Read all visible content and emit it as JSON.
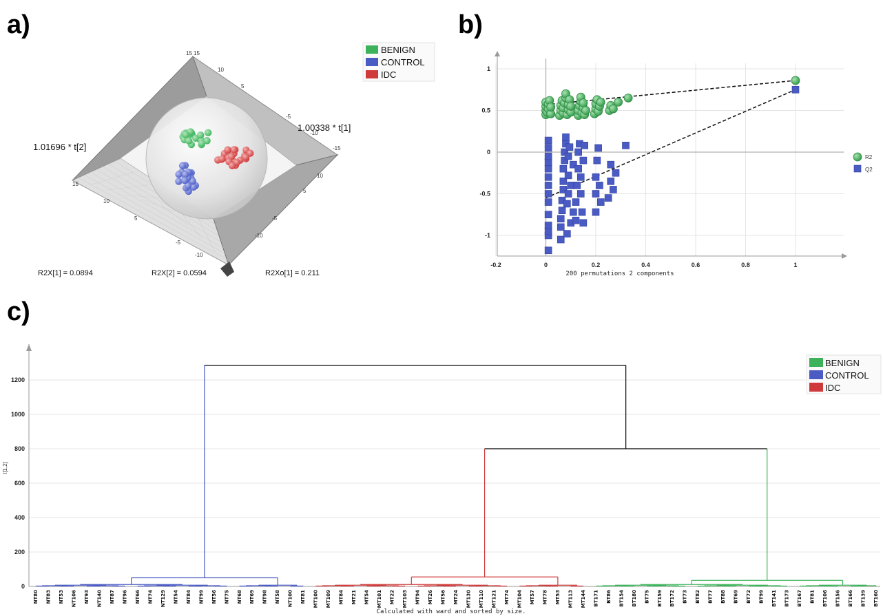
{
  "panels": {
    "a": "a)",
    "b": "b)",
    "c": "c)"
  },
  "colors": {
    "benign": "#3cb35a",
    "control": "#4a5bc4",
    "idc": "#cf3a3a",
    "black": "#000000"
  },
  "chart_data": [
    {
      "type": "scatter",
      "panel": "a",
      "subtype": "3d-scores",
      "legend": [
        {
          "name": "BENIGN",
          "color": "#3cb35a"
        },
        {
          "name": "CONTROL",
          "color": "#4a5bc4"
        },
        {
          "name": "IDC",
          "color": "#cf3a3a"
        }
      ],
      "axis_labels": {
        "t1": "1.00338 * t[1]",
        "t2": "1.01696 * t[2]"
      },
      "footer": [
        "R2X[1] = 0.0894",
        "R2X[2] = 0.0594",
        "R2Xo[1] = 0.211"
      ],
      "corner_ticks": [
        "15",
        "15",
        "10",
        "5",
        "-5",
        "-10",
        "-15"
      ]
    },
    {
      "type": "scatter",
      "panel": "b",
      "xlabel": "200 permutations 2 components",
      "xticks": [
        "-0.2",
        "0",
        "0.2",
        "0.4",
        "0.6",
        "0.8",
        "1"
      ],
      "yticks": [
        "1",
        "0.5",
        "0",
        "-0.5",
        "-1"
      ],
      "xlim": [
        -0.2,
        1.15
      ],
      "ylim": [
        -1.25,
        1.1
      ],
      "series": [
        {
          "name": "R2",
          "marker": "circle",
          "color": "#3cb35a",
          "points": [
            [
              0,
              0.45
            ],
            [
              0,
              0.5
            ],
            [
              0,
              0.55
            ],
            [
              0,
              0.6
            ],
            [
              0.005,
              0.48
            ],
            [
              0.01,
              0.52
            ],
            [
              0.01,
              0.58
            ],
            [
              0.015,
              0.62
            ],
            [
              0.02,
              0.46
            ],
            [
              0.02,
              0.54
            ],
            [
              0.055,
              0.44
            ],
            [
              0.06,
              0.5
            ],
            [
              0.06,
              0.56
            ],
            [
              0.065,
              0.62
            ],
            [
              0.07,
              0.47
            ],
            [
              0.07,
              0.53
            ],
            [
              0.075,
              0.59
            ],
            [
              0.08,
              0.65
            ],
            [
              0.08,
              0.7
            ],
            [
              0.085,
              0.45
            ],
            [
              0.09,
              0.51
            ],
            [
              0.09,
              0.57
            ],
            [
              0.095,
              0.63
            ],
            [
              0.1,
              0.48
            ],
            [
              0.1,
              0.55
            ],
            [
              0.13,
              0.44
            ],
            [
              0.13,
              0.5
            ],
            [
              0.135,
              0.56
            ],
            [
              0.14,
              0.61
            ],
            [
              0.14,
              0.66
            ],
            [
              0.145,
              0.47
            ],
            [
              0.15,
              0.53
            ],
            [
              0.15,
              0.59
            ],
            [
              0.155,
              0.45
            ],
            [
              0.16,
              0.5
            ],
            [
              0.195,
              0.46
            ],
            [
              0.2,
              0.52
            ],
            [
              0.2,
              0.58
            ],
            [
              0.205,
              0.63
            ],
            [
              0.21,
              0.49
            ],
            [
              0.215,
              0.55
            ],
            [
              0.22,
              0.6
            ],
            [
              0.255,
              0.5
            ],
            [
              0.26,
              0.56
            ],
            [
              0.27,
              0.52
            ],
            [
              0.29,
              0.6
            ],
            [
              0.33,
              0.65
            ],
            [
              1,
              0.86
            ]
          ]
        },
        {
          "name": "Q2",
          "marker": "square",
          "color": "#4a5bc4",
          "points": [
            [
              0.01,
              -1.18
            ],
            [
              0.01,
              -1.0
            ],
            [
              0.01,
              -0.95
            ],
            [
              0.01,
              -0.88
            ],
            [
              0.01,
              -0.75
            ],
            [
              0.01,
              -0.6
            ],
            [
              0.01,
              -0.5
            ],
            [
              0.01,
              -0.4
            ],
            [
              0.01,
              -0.3
            ],
            [
              0.01,
              -0.2
            ],
            [
              0.01,
              -0.12
            ],
            [
              0.01,
              -0.05
            ],
            [
              0.01,
              0.05
            ],
            [
              0.01,
              0.14
            ],
            [
              0.06,
              -1.05
            ],
            [
              0.06,
              -0.9
            ],
            [
              0.06,
              -0.8
            ],
            [
              0.065,
              -0.7
            ],
            [
              0.065,
              -0.58
            ],
            [
              0.07,
              -0.45
            ],
            [
              0.07,
              -0.35
            ],
            [
              0.07,
              -0.2
            ],
            [
              0.075,
              -0.1
            ],
            [
              0.075,
              0.0
            ],
            [
              0.08,
              0.1
            ],
            [
              0.08,
              0.18
            ],
            [
              0.085,
              -0.98
            ],
            [
              0.085,
              -0.62
            ],
            [
              0.09,
              -0.5
            ],
            [
              0.09,
              -0.28
            ],
            [
              0.09,
              -0.05
            ],
            [
              0.095,
              0.06
            ],
            [
              0.1,
              -0.85
            ],
            [
              0.1,
              -0.4
            ],
            [
              0.11,
              -0.72
            ],
            [
              0.11,
              -0.15
            ],
            [
              0.12,
              -0.82
            ],
            [
              0.12,
              -0.6
            ],
            [
              0.125,
              -0.4
            ],
            [
              0.13,
              -0.2
            ],
            [
              0.13,
              0.0
            ],
            [
              0.135,
              0.1
            ],
            [
              0.14,
              -0.5
            ],
            [
              0.14,
              -0.3
            ],
            [
              0.145,
              -0.72
            ],
            [
              0.15,
              -0.85
            ],
            [
              0.15,
              -0.1
            ],
            [
              0.155,
              0.08
            ],
            [
              0.2,
              -0.72
            ],
            [
              0.2,
              -0.5
            ],
            [
              0.2,
              -0.3
            ],
            [
              0.205,
              -0.1
            ],
            [
              0.21,
              0.05
            ],
            [
              0.215,
              -0.4
            ],
            [
              0.22,
              -0.6
            ],
            [
              0.25,
              -0.55
            ],
            [
              0.26,
              -0.35
            ],
            [
              0.26,
              -0.15
            ],
            [
              0.27,
              -0.45
            ],
            [
              0.28,
              -0.25
            ],
            [
              0.32,
              0.08
            ],
            [
              1,
              0.75
            ]
          ]
        }
      ],
      "lines": [
        {
          "series": "R2",
          "from": [
            0,
            0.57
          ],
          "to": [
            1,
            0.86
          ]
        },
        {
          "series": "Q2",
          "from": [
            0,
            -0.55
          ],
          "to": [
            1,
            0.75
          ]
        }
      ]
    },
    {
      "type": "dendrogram",
      "panel": "c",
      "ylabel": "t[1,2]",
      "xlabel": "Calculated with ward and sorted by size.",
      "yticks": [
        0,
        200,
        400,
        600,
        800,
        1000,
        1200
      ],
      "ylim": [
        0,
        1350
      ],
      "legend": [
        {
          "name": "BENIGN",
          "color": "#3cb35a"
        },
        {
          "name": "CONTROL",
          "color": "#4a5bc4"
        },
        {
          "name": "IDC",
          "color": "#cf3a3a"
        }
      ],
      "clusters": [
        {
          "name": "CONTROL",
          "leaves": [
            "NT80",
            "NT83",
            "NT53",
            "NT106",
            "NT93",
            "NT140",
            "NT87",
            "NT96",
            "NT66",
            "NT74",
            "NT129",
            "NT54",
            "NT84",
            "NT99",
            "NT56",
            "NT75",
            "NT68",
            "NT69",
            "NT98",
            "NT58",
            "NT100",
            "NT81"
          ]
        },
        {
          "name": "IDC",
          "leaves": [
            "MT100",
            "MT109",
            "MT84",
            "MT21",
            "MT54",
            "MT101",
            "MT22",
            "MT103",
            "MT94",
            "MT26",
            "MT56",
            "MT24",
            "MT130",
            "MT110",
            "MT121",
            "MT74",
            "MT104",
            "MT57",
            "MT78",
            "MT53",
            "MT113",
            "MT144"
          ]
        },
        {
          "name": "BENIGN",
          "leaves": [
            "BT171",
            "BT86",
            "BT154",
            "BT180",
            "BT75",
            "BT159",
            "BT172",
            "BT73",
            "BT82",
            "BT77",
            "BT88",
            "BT69",
            "BT72",
            "BT99",
            "BT141",
            "BT173",
            "BT167",
            "BT81",
            "BT106",
            "BT156",
            "BT166",
            "BT139",
            "BT160"
          ]
        }
      ],
      "merges": {
        "control": 50,
        "idc": 55,
        "benign": 35,
        "idc_benign": 800,
        "root": 1285
      }
    }
  ]
}
